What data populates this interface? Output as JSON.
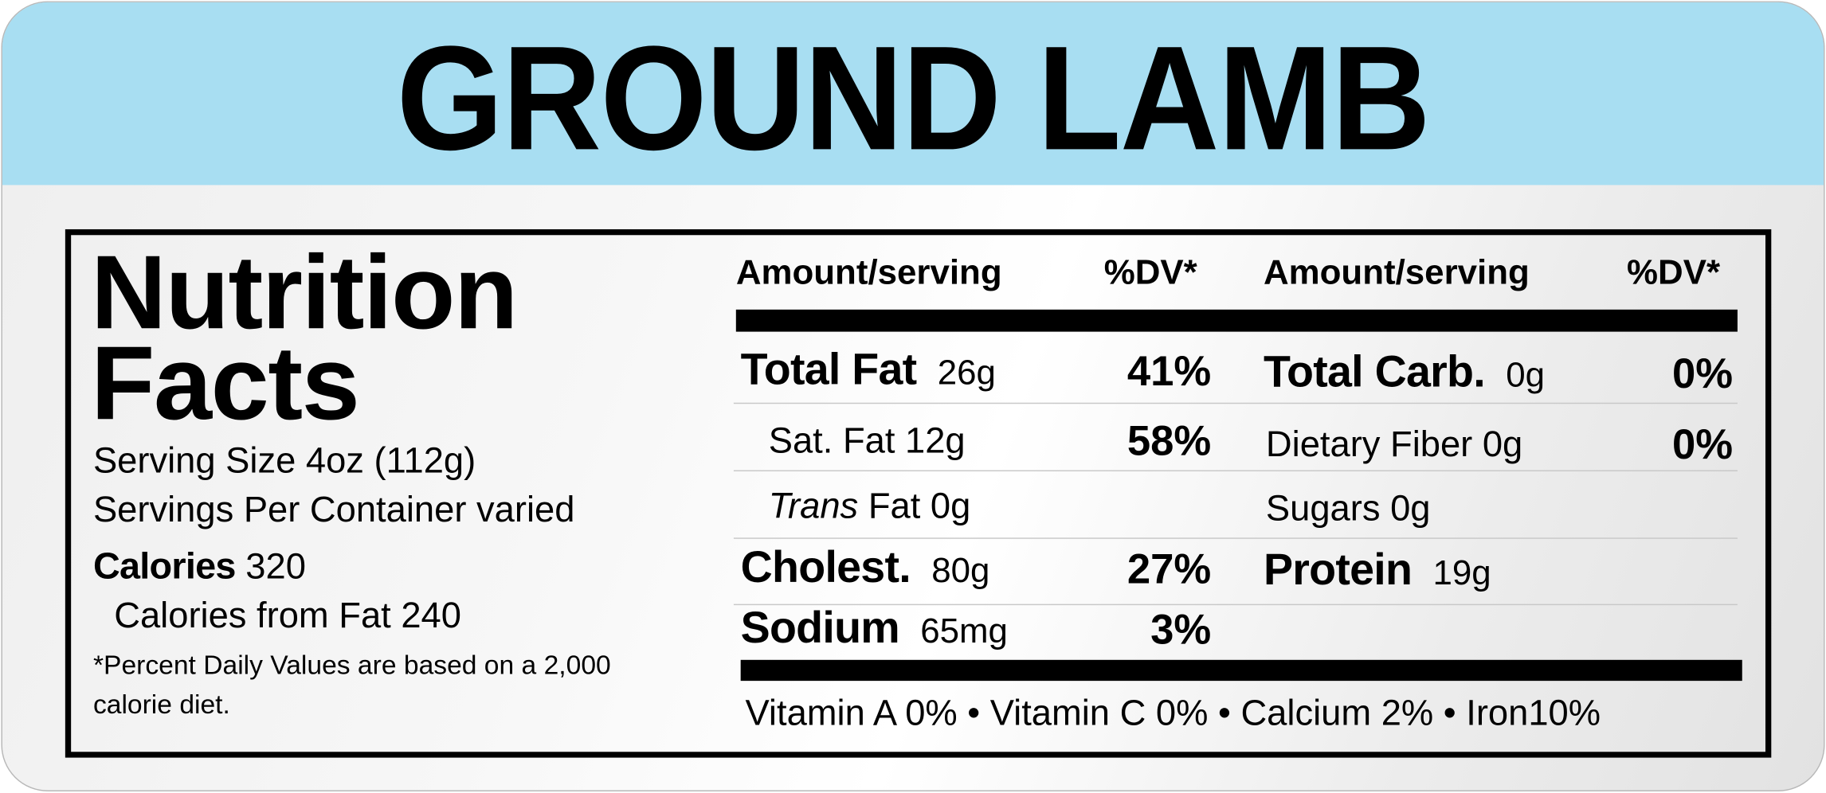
{
  "header": {
    "title": "GROUND LAMB"
  },
  "panel": {
    "title_line1": "Nutrition",
    "title_line2": "Facts",
    "serving_size": "Serving Size 4oz (112g)",
    "servings_per_container": "Servings Per Container varied",
    "calories_label": "Calories",
    "calories_value": "320",
    "calories_from_fat": "Calories from Fat 240",
    "footnote_line1": "*Percent Daily Values are based on a 2,000",
    "footnote_line2": "calorie diet."
  },
  "table": {
    "columns": [
      "Amount/serving",
      "%DV*",
      "Amount/serving",
      "%DV*"
    ],
    "left_rows": [
      {
        "name": "Total Fat",
        "amount": "26g",
        "dv": "41%"
      },
      {
        "label": "Sat. Fat 12g",
        "dv": "58%"
      },
      {
        "italic": "Trans",
        "label": "Fat 0g"
      },
      {
        "name": "Cholest.",
        "amount": "80g",
        "dv": "27%"
      },
      {
        "name": "Sodium",
        "amount": "65mg",
        "dv": "3%"
      }
    ],
    "right_rows": [
      {
        "name": "Total Carb.",
        "amount": "0g",
        "dv": "0%"
      },
      {
        "label": "Dietary Fiber 0g",
        "dv": "0%"
      },
      {
        "label": "Sugars 0g"
      },
      {
        "name": "Protein",
        "amount": "19g"
      }
    ],
    "vitamins": "Vitamin A 0% • Vitamin C 0% • Calcium 2% • Iron10%"
  }
}
